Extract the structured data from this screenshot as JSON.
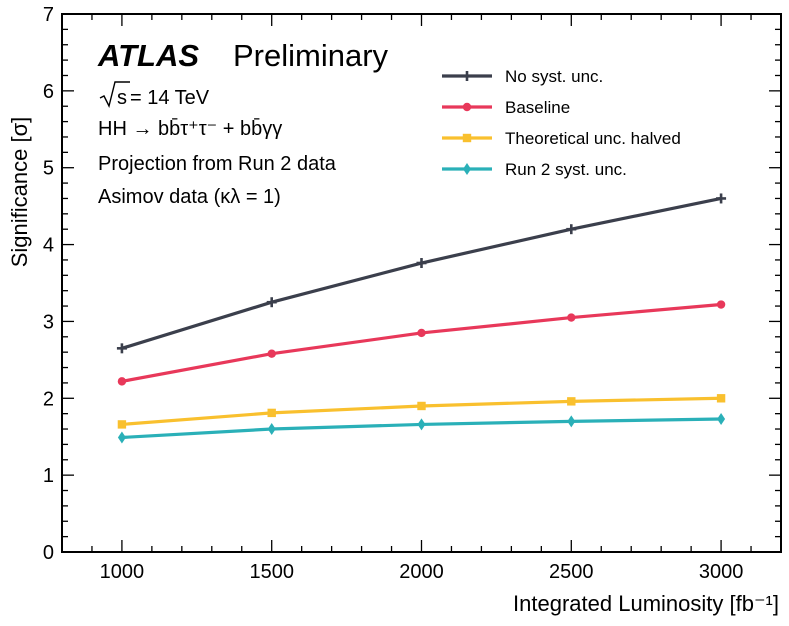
{
  "chart_data": {
    "type": "line",
    "xlabel": "Integrated Luminosity [fb⁻¹]",
    "ylabel": "Significance [σ]",
    "xlim": [
      800,
      3200
    ],
    "ylim": [
      0,
      7
    ],
    "x": [
      1000,
      1500,
      2000,
      2500,
      3000
    ],
    "x_ticks": [
      "1000",
      "1500",
      "2000",
      "2500",
      "3000"
    ],
    "y_ticks": [
      "0",
      "1",
      "2",
      "3",
      "4",
      "5",
      "6",
      "7"
    ],
    "grid": false,
    "legend_position": "top-right",
    "series": [
      {
        "name": "No syst. unc.",
        "color": "#3b3f4c",
        "marker": "plus",
        "values": [
          2.65,
          3.25,
          3.76,
          4.2,
          4.6
        ]
      },
      {
        "name": "Baseline",
        "color": "#e8385a",
        "marker": "circle",
        "values": [
          2.22,
          2.58,
          2.85,
          3.05,
          3.22
        ]
      },
      {
        "name": "Theoretical unc. halved",
        "color": "#f9c02e",
        "marker": "square",
        "values": [
          1.66,
          1.81,
          1.9,
          1.96,
          2.0
        ]
      },
      {
        "name": "Run 2 syst. unc.",
        "color": "#2ab0b8",
        "marker": "diamond",
        "values": [
          1.49,
          1.6,
          1.66,
          1.7,
          1.73
        ]
      }
    ],
    "annotations": {
      "experiment": "ATLAS",
      "status": "Preliminary",
      "energy_prefix": "s",
      "energy_suffix": " = 14 TeV",
      "process": "HH → bb̄τ⁺τ⁻ + bb̄γγ",
      "projection": "Projection from Run 2 data",
      "asimov": "Asimov data (κλ = 1)"
    }
  }
}
